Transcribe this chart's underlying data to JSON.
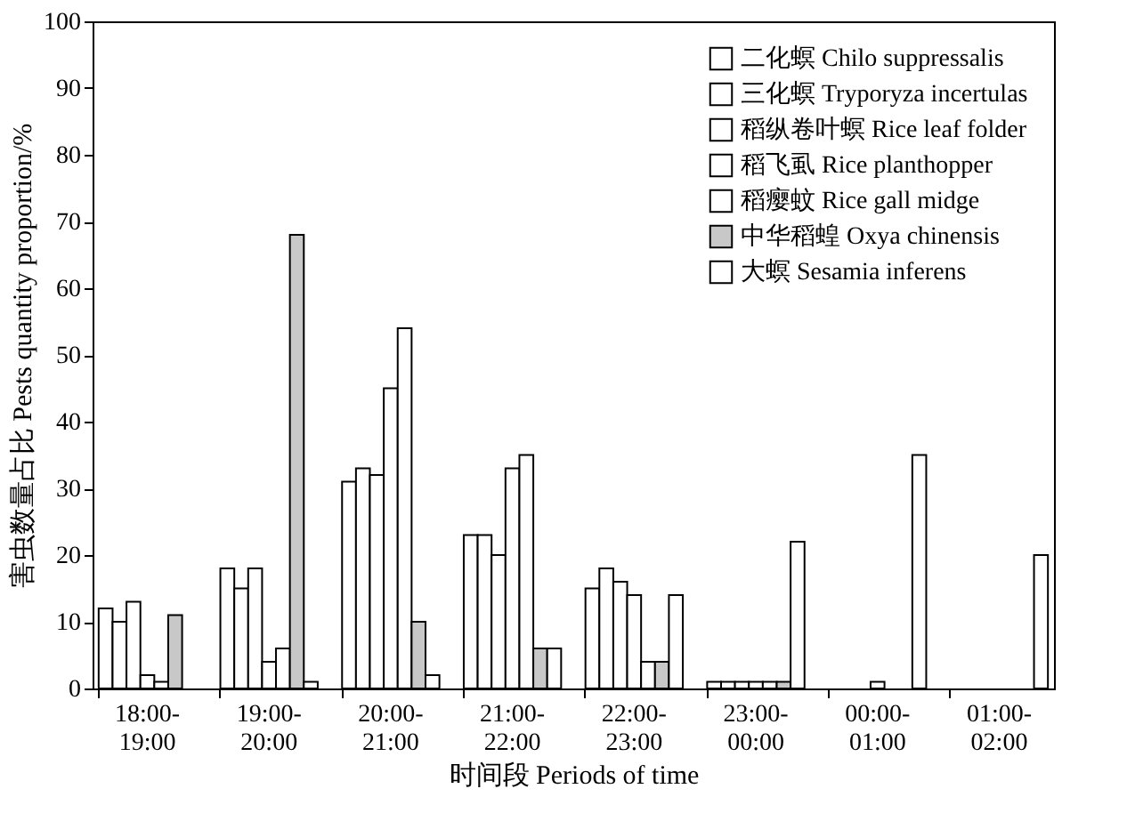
{
  "chart_data": {
    "type": "bar",
    "xlabel": "时间段 Periods of time",
    "ylabel": "害虫数量占比 Pests quantity proportion/%",
    "categories": [
      "18:00-\n19:00",
      "19:00-\n20:00",
      "20:00-\n21:00",
      "21:00-\n22:00",
      "22:00-\n23:00",
      "23:00-\n00:00",
      "00:00-\n01:00",
      "01:00-\n02:00"
    ],
    "series": [
      {
        "name": "二化螟 Chilo suppressalis",
        "color": "#ffffff",
        "values": [
          12,
          18,
          31,
          23,
          15,
          1,
          null,
          null
        ]
      },
      {
        "name": "三化螟 Tryporyza incertulas",
        "color": "#ffffff",
        "values": [
          10,
          15,
          33,
          23,
          18,
          1,
          null,
          null
        ]
      },
      {
        "name": "稻纵卷叶螟 Rice leaf folder",
        "color": "#ffffff",
        "values": [
          13,
          18,
          32,
          20,
          16,
          1,
          null,
          null
        ]
      },
      {
        "name": "稻飞虱 Rice planthopper",
        "color": "#ffffff",
        "values": [
          2,
          4,
          45,
          33,
          14,
          1,
          1,
          null
        ]
      },
      {
        "name": "稻瘿蚊 Rice gall midge",
        "color": "#ffffff",
        "values": [
          1,
          6,
          54,
          35,
          4,
          1,
          null,
          null
        ]
      },
      {
        "name": "中华稻蝗 Oxya chinensis",
        "color": "#c8c8c8",
        "values": [
          11,
          68,
          10,
          6,
          4,
          1,
          null,
          null
        ]
      },
      {
        "name": "大螟 Sesamia inferens",
        "color": "#ffffff",
        "values": [
          null,
          1,
          2,
          6,
          14,
          22,
          35,
          20
        ]
      }
    ],
    "ylim": [
      0,
      100
    ],
    "yticks": [
      0,
      10,
      20,
      30,
      40,
      50,
      60,
      70,
      80,
      90,
      100
    ],
    "grid": false,
    "legend": "top right"
  }
}
